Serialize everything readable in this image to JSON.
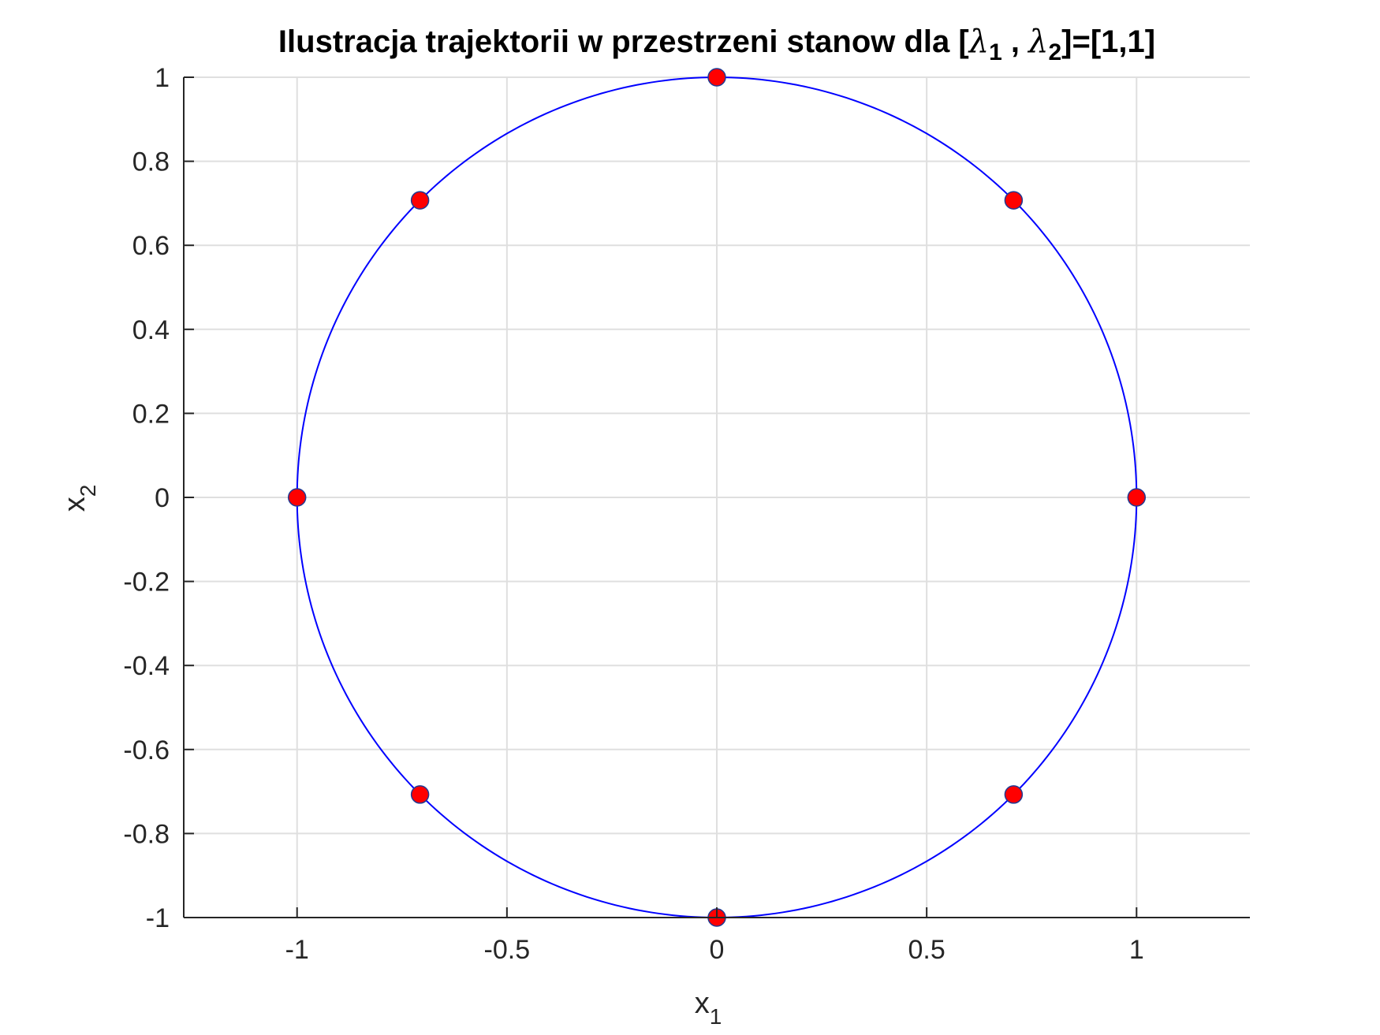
{
  "chart_data": {
    "type": "line",
    "title": {
      "prefix": "Ilustracja trajektorii w przestrzeni stanow dla [",
      "symbol_1": "λ",
      "sub_1": "1",
      "separator": " , ",
      "symbol_2": "λ",
      "sub_2": "2",
      "suffix": "]=[1,1]"
    },
    "xlabel": {
      "base": "x",
      "sub": "1"
    },
    "ylabel": {
      "base": "x",
      "sub": "2"
    },
    "xlim": [
      -1.27,
      1.27
    ],
    "ylim": [
      -1,
      1
    ],
    "xticks": [
      -1,
      -0.5,
      0,
      0.5,
      1
    ],
    "xtick_labels": [
      "-1",
      "-0.5",
      "0",
      "0.5",
      "1"
    ],
    "yticks": [
      -1,
      -0.8,
      -0.6,
      -0.4,
      -0.2,
      0,
      0.2,
      0.4,
      0.6,
      0.8,
      1
    ],
    "ytick_labels": [
      "-1",
      "-0.8",
      "-0.6",
      "-0.4",
      "-0.2",
      "0",
      "0.2",
      "0.4",
      "0.6",
      "0.8",
      "1"
    ],
    "grid": true,
    "series": [
      {
        "kind": "line",
        "shape": "circle",
        "center": [
          0,
          0
        ],
        "radius": 1,
        "color": "#0000ff"
      },
      {
        "kind": "scatter",
        "color": "#ff0000",
        "edge_color": "#1f3a93",
        "points": [
          [
            1,
            0
          ],
          [
            0.7071,
            0.7071
          ],
          [
            0,
            1
          ],
          [
            -0.7071,
            0.7071
          ],
          [
            -1,
            0
          ],
          [
            -0.7071,
            -0.7071
          ],
          [
            0,
            -1
          ],
          [
            0.7071,
            -0.7071
          ]
        ]
      }
    ]
  }
}
